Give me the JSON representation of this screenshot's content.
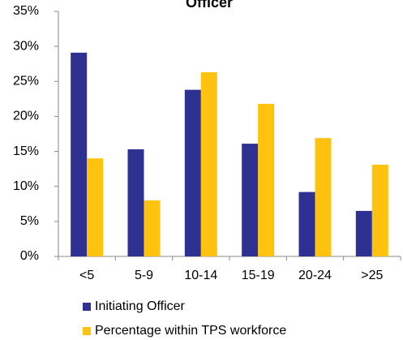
{
  "chart_data": {
    "type": "bar",
    "title": "Officer",
    "categories": [
      "<5",
      "5-9",
      "10-14",
      "15-19",
      "20-24",
      ">25"
    ],
    "series": [
      {
        "name": "Initiating Officer",
        "color": "#2e3192",
        "values": [
          29.1,
          15.3,
          23.8,
          16.1,
          9.2,
          6.5
        ]
      },
      {
        "name": "Percentage within TPS workforce",
        "color": "#ffc20e",
        "values": [
          14,
          8,
          26.3,
          21.8,
          16.9,
          13.1
        ]
      }
    ],
    "ylim": [
      0,
      35
    ],
    "yticks": [
      {
        "value": 0,
        "label": "0%"
      },
      {
        "value": 5,
        "label": "5%"
      },
      {
        "value": 10,
        "label": "10%"
      },
      {
        "value": 15,
        "label": "15%"
      },
      {
        "value": 20,
        "label": "20%"
      },
      {
        "value": 25,
        "label": "25%"
      },
      {
        "value": 30,
        "label": "30%"
      },
      {
        "value": 35,
        "label": "35%"
      }
    ],
    "grid": false
  }
}
